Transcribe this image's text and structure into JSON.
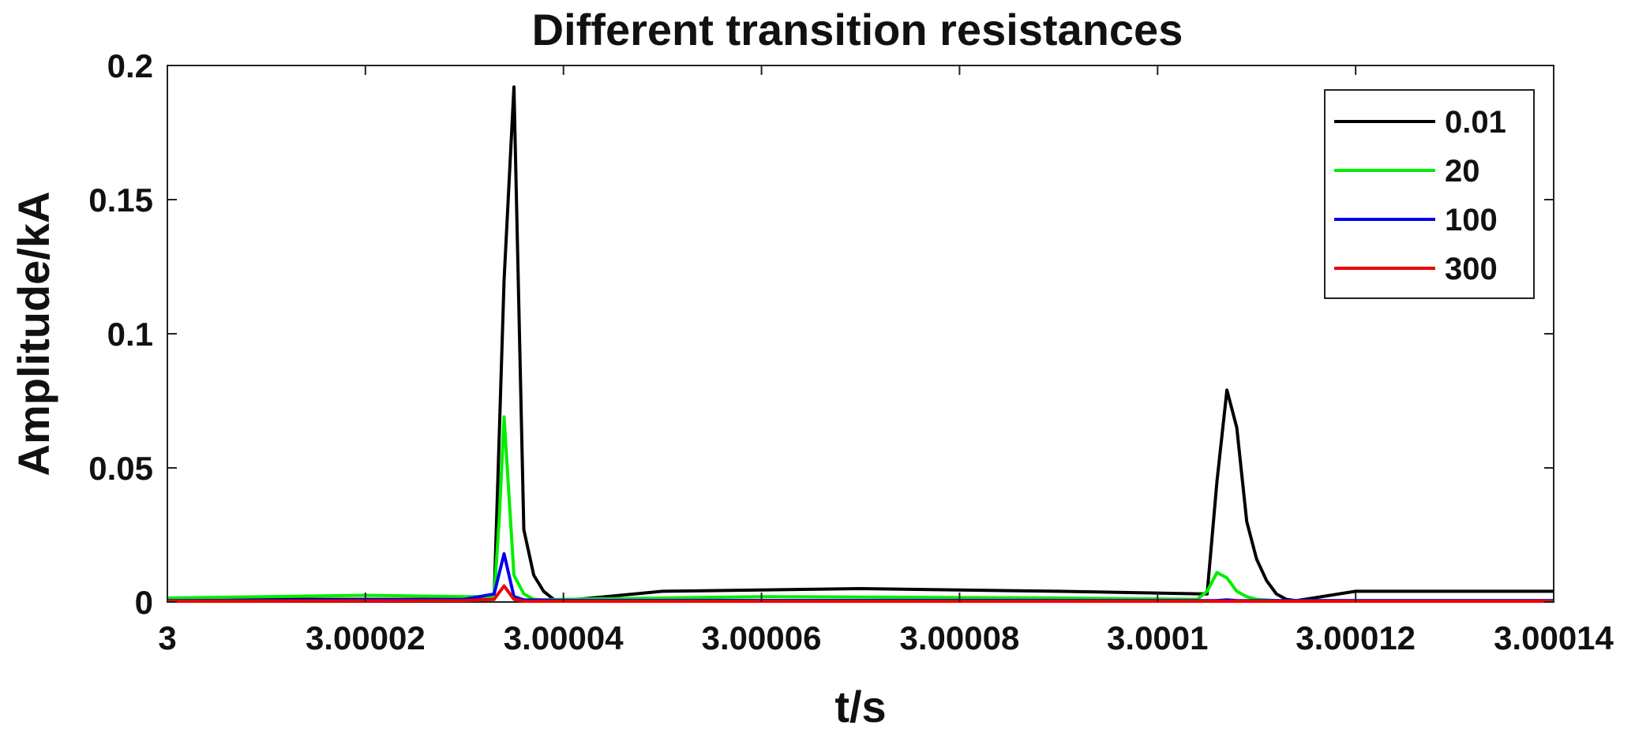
{
  "chart_data": {
    "type": "line",
    "title": "Different transition resistances",
    "xlabel": "t/s",
    "ylabel": "Amplitude/kA",
    "xlim": [
      3.0,
      3.00014
    ],
    "ylim": [
      0,
      0.2
    ],
    "x_ticks": [
      3.0,
      3.00002,
      3.00004,
      3.00006,
      3.00008,
      3.0001,
      3.00012,
      3.00014
    ],
    "x_tick_labels": [
      "3",
      "3.00002",
      "3.00004",
      "3.00006",
      "3.00008",
      "3.0001",
      "3.00012",
      "3.00014"
    ],
    "y_ticks": [
      0,
      0.05,
      0.1,
      0.15,
      0.2
    ],
    "y_tick_labels": [
      "0",
      "0.05",
      "0.1",
      "0.15",
      "0.2"
    ],
    "grid": false,
    "legend_position": "top-right",
    "series": [
      {
        "name": "0.01",
        "color": "#000000",
        "x": [
          3.0,
          3.00001,
          3.00002,
          3.00003,
          3.000033,
          3.000034,
          3.000035,
          3.000036,
          3.000037,
          3.000038,
          3.000039,
          3.00004,
          3.00005,
          3.00007,
          3.00009,
          3.000105,
          3.000106,
          3.000107,
          3.000108,
          3.000109,
          3.00011,
          3.000111,
          3.000112,
          3.000113,
          3.000114,
          3.00012,
          3.00014
        ],
        "y": [
          0.001,
          0.001,
          0.001,
          0.001,
          0.001,
          0.12,
          0.192,
          0.027,
          0.01,
          0.004,
          0.001,
          0.0005,
          0.004,
          0.005,
          0.004,
          0.003,
          0.045,
          0.079,
          0.065,
          0.03,
          0.016,
          0.008,
          0.003,
          0.001,
          0.0005,
          0.004,
          0.004
        ]
      },
      {
        "name": "20",
        "color": "#00ee00",
        "x": [
          3.0,
          3.00001,
          3.00002,
          3.00003,
          3.000033,
          3.0000335,
          3.000034,
          3.000035,
          3.000036,
          3.000037,
          3.000038,
          3.00004,
          3.00006,
          3.00009,
          3.000104,
          3.000105,
          3.000106,
          3.000107,
          3.000108,
          3.000109,
          3.00011,
          3.000112,
          3.00014
        ],
        "y": [
          0.0015,
          0.002,
          0.0025,
          0.002,
          0.002,
          0.03,
          0.069,
          0.01,
          0.003,
          0.001,
          0.0008,
          0.001,
          0.002,
          0.0015,
          0.001,
          0.004,
          0.011,
          0.009,
          0.004,
          0.002,
          0.001,
          0.0005,
          0.0005
        ]
      },
      {
        "name": "100",
        "color": "#0000ee",
        "x": [
          3.0,
          3.00002,
          3.00003,
          3.000033,
          3.000034,
          3.000035,
          3.000036,
          3.00004,
          3.00008,
          3.000106,
          3.000107,
          3.000108,
          3.00014
        ],
        "y": [
          0.0005,
          0.0008,
          0.001,
          0.003,
          0.018,
          0.002,
          0.0008,
          0.0006,
          0.0006,
          0.0005,
          0.0008,
          0.0005,
          0.0005
        ]
      },
      {
        "name": "300",
        "color": "#ee0000",
        "x": [
          3.0,
          3.00002,
          3.00003,
          3.000033,
          3.000034,
          3.000035,
          3.000036,
          3.00004,
          3.00008,
          3.00014
        ],
        "y": [
          0.0003,
          0.0004,
          0.0005,
          0.001,
          0.006,
          0.001,
          0.0003,
          0.0003,
          0.0003,
          0.0003
        ]
      }
    ]
  }
}
